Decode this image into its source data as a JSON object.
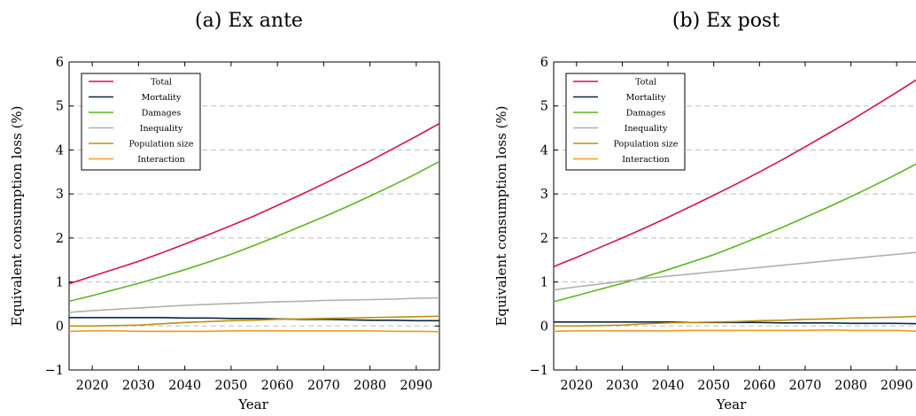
{
  "chart_data": [
    {
      "type": "line",
      "title": "(a) Ex ante",
      "xlabel": "Year",
      "ylabel": "Equivalent consumption loss (%)",
      "xlim": [
        2015,
        2095
      ],
      "ylim": [
        -1,
        6
      ],
      "xticks": [
        2020,
        2030,
        2040,
        2050,
        2060,
        2070,
        2080,
        2090
      ],
      "yticks": [
        -1,
        0,
        1,
        2,
        3,
        4,
        5,
        6
      ],
      "grid": "horizontal dashed",
      "legend_position": "top-left",
      "x": [
        2015,
        2020,
        2025,
        2030,
        2035,
        2040,
        2045,
        2050,
        2055,
        2060,
        2065,
        2070,
        2075,
        2080,
        2085,
        2090,
        2095
      ],
      "series": [
        {
          "name": "Total",
          "color": "#d6124f",
          "values": [
            0.96,
            1.13,
            1.3,
            1.47,
            1.66,
            1.86,
            2.07,
            2.28,
            2.5,
            2.74,
            2.98,
            3.23,
            3.49,
            3.75,
            4.03,
            4.31,
            4.6
          ]
        },
        {
          "name": "Mortality",
          "color": "#0b2545",
          "values": [
            0.19,
            0.19,
            0.19,
            0.19,
            0.19,
            0.18,
            0.18,
            0.17,
            0.17,
            0.16,
            0.15,
            0.15,
            0.14,
            0.13,
            0.13,
            0.12,
            0.12
          ]
        },
        {
          "name": "Damages",
          "color": "#5fb31f",
          "values": [
            0.56,
            0.69,
            0.83,
            0.97,
            1.12,
            1.28,
            1.45,
            1.63,
            1.83,
            2.04,
            2.26,
            2.48,
            2.71,
            2.95,
            3.2,
            3.46,
            3.74
          ]
        },
        {
          "name": "Inequality",
          "color": "#b0b0b0",
          "values": [
            0.31,
            0.35,
            0.38,
            0.41,
            0.44,
            0.47,
            0.49,
            0.51,
            0.53,
            0.55,
            0.56,
            0.58,
            0.59,
            0.6,
            0.61,
            0.63,
            0.64
          ]
        },
        {
          "name": "Population size",
          "color": "#c0900a",
          "values": [
            0.0,
            0.0,
            0.01,
            0.02,
            0.05,
            0.08,
            0.1,
            0.12,
            0.13,
            0.15,
            0.16,
            0.17,
            0.18,
            0.19,
            0.2,
            0.21,
            0.22
          ]
        },
        {
          "name": "Interaction",
          "color": "#f39a1e",
          "values": [
            -0.12,
            -0.11,
            -0.11,
            -0.12,
            -0.12,
            -0.12,
            -0.12,
            -0.11,
            -0.11,
            -0.11,
            -0.11,
            -0.11,
            -0.11,
            -0.11,
            -0.12,
            -0.12,
            -0.13
          ]
        }
      ]
    },
    {
      "type": "line",
      "title": "(b) Ex post",
      "xlabel": "Year",
      "ylabel": "Equivalent consumption loss (%)",
      "xlim": [
        2015,
        2095
      ],
      "ylim": [
        -1,
        6
      ],
      "xticks": [
        2020,
        2030,
        2040,
        2050,
        2060,
        2070,
        2080,
        2090
      ],
      "yticks": [
        -1,
        0,
        1,
        2,
        3,
        4,
        5,
        6
      ],
      "grid": "horizontal dashed",
      "legend_position": "top-left",
      "x": [
        2015,
        2020,
        2025,
        2030,
        2035,
        2040,
        2045,
        2050,
        2055,
        2060,
        2065,
        2070,
        2075,
        2080,
        2085,
        2090,
        2095
      ],
      "series": [
        {
          "name": "Total",
          "color": "#d6124f",
          "values": [
            1.35,
            1.56,
            1.78,
            2.0,
            2.23,
            2.47,
            2.72,
            2.97,
            3.23,
            3.5,
            3.78,
            4.07,
            4.37,
            4.67,
            4.99,
            5.31,
            5.64
          ]
        },
        {
          "name": "Mortality",
          "color": "#0b2545",
          "values": [
            0.09,
            0.09,
            0.09,
            0.09,
            0.09,
            0.09,
            0.08,
            0.08,
            0.08,
            0.08,
            0.07,
            0.07,
            0.07,
            0.06,
            0.06,
            0.06,
            0.05
          ]
        },
        {
          "name": "Damages",
          "color": "#5fb31f",
          "values": [
            0.55,
            0.69,
            0.83,
            0.97,
            1.12,
            1.28,
            1.45,
            1.62,
            1.82,
            2.03,
            2.24,
            2.47,
            2.7,
            2.94,
            3.19,
            3.45,
            3.72
          ]
        },
        {
          "name": "Inequality",
          "color": "#b0b0b0",
          "values": [
            0.82,
            0.89,
            0.95,
            1.02,
            1.08,
            1.13,
            1.18,
            1.23,
            1.28,
            1.33,
            1.38,
            1.43,
            1.48,
            1.53,
            1.58,
            1.63,
            1.68
          ]
        },
        {
          "name": "Population size",
          "color": "#c0900a",
          "values": [
            0.0,
            0.0,
            0.01,
            0.02,
            0.05,
            0.07,
            0.08,
            0.09,
            0.1,
            0.12,
            0.13,
            0.15,
            0.16,
            0.18,
            0.19,
            0.2,
            0.22
          ]
        },
        {
          "name": "Interaction",
          "color": "#f39a1e",
          "values": [
            -0.12,
            -0.11,
            -0.11,
            -0.11,
            -0.11,
            -0.11,
            -0.1,
            -0.1,
            -0.1,
            -0.1,
            -0.1,
            -0.1,
            -0.09,
            -0.1,
            -0.1,
            -0.1,
            -0.12
          ]
        }
      ]
    }
  ]
}
